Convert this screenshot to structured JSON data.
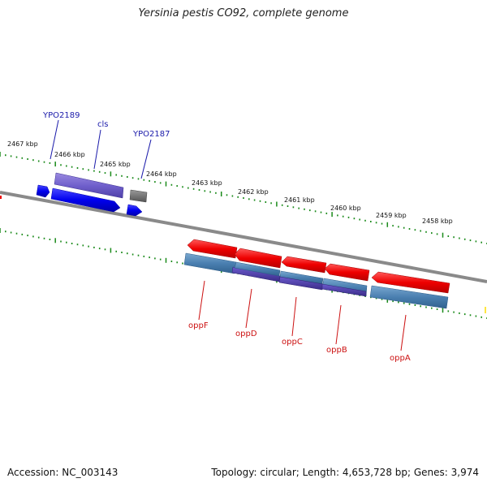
{
  "title": "Yersinia pestis CO92, complete genome",
  "footer": {
    "accession": "Accession: NC_003143",
    "summary": "Topology: circular; Length: 4,653,728 bp; Genes: 3,974"
  },
  "scale_labels": [
    "2467 kbp",
    "2466 kbp",
    "2465 kbp",
    "2464 kbp",
    "2463 kbp",
    "2462 kbp",
    "2461 kbp",
    "2460 kbp",
    "2459 kbp",
    "2458 kbp"
  ],
  "top_gene_labels": [
    "YPO2189",
    "cls",
    "YPO2187"
  ],
  "bottom_gene_labels": [
    "oppF",
    "oppD",
    "oppC",
    "oppB",
    "oppA"
  ],
  "colors": {
    "forward_gene": "#0000ee",
    "reverse_gene": "#ee0000",
    "forward_feature": "#7060cc",
    "reverse_feature": "#4a7fb0",
    "other_feature": "#777777",
    "backbone": "#8a8a8a",
    "tick": "#1a8a1a",
    "top_label": "#1a1aaa",
    "bottom_label": "#cc1111"
  }
}
